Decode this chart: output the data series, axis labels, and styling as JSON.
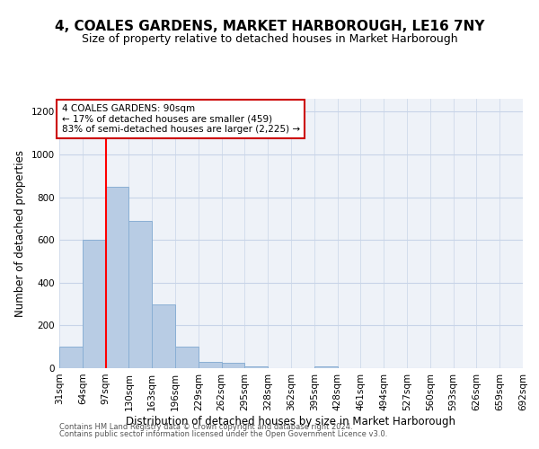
{
  "title": "4, COALES GARDENS, MARKET HARBOROUGH, LE16 7NY",
  "subtitle": "Size of property relative to detached houses in Market Harborough",
  "xlabel": "Distribution of detached houses by size in Market Harborough",
  "ylabel": "Number of detached properties",
  "bin_labels": [
    "31sqm",
    "64sqm",
    "97sqm",
    "130sqm",
    "163sqm",
    "196sqm",
    "229sqm",
    "262sqm",
    "295sqm",
    "328sqm",
    "362sqm",
    "395sqm",
    "428sqm",
    "461sqm",
    "494sqm",
    "527sqm",
    "560sqm",
    "593sqm",
    "626sqm",
    "659sqm",
    "692sqm"
  ],
  "bar_heights": [
    100,
    600,
    850,
    690,
    300,
    100,
    30,
    25,
    10,
    0,
    0,
    10,
    0,
    0,
    0,
    0,
    0,
    0,
    0,
    0
  ],
  "bar_color": "#b8cce4",
  "bar_edge_color": "#8aafd4",
  "grid_color": "#c8d4e8",
  "bg_color": "#eef2f8",
  "red_line_x": 2,
  "annotation_text": "4 COALES GARDENS: 90sqm\n← 17% of detached houses are smaller (459)\n83% of semi-detached houses are larger (2,225) →",
  "annotation_box_color": "#ffffff",
  "annotation_border_color": "#cc0000",
  "footer1": "Contains HM Land Registry data © Crown copyright and database right 2024.",
  "footer2": "Contains public sector information licensed under the Open Government Licence v3.0.",
  "ylim": [
    0,
    1260
  ],
  "yticks": [
    0,
    200,
    400,
    600,
    800,
    1000,
    1200
  ],
  "title_fontsize": 11,
  "subtitle_fontsize": 9,
  "xlabel_fontsize": 8.5,
  "ylabel_fontsize": 8.5,
  "tick_fontsize": 7.5,
  "annot_fontsize": 7.5,
  "footer_fontsize": 6
}
